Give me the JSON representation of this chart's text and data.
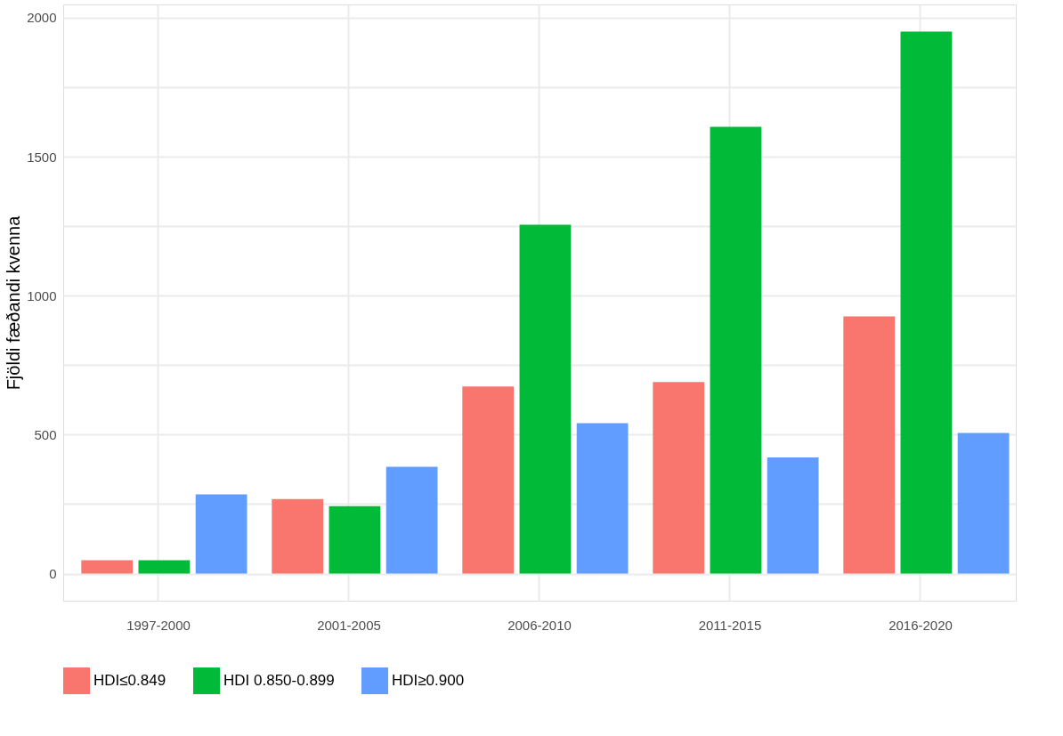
{
  "chart_data": {
    "type": "bar",
    "ylabel": "Fjöldi fæðandi kvenna",
    "categories": [
      "1997-2000",
      "2001-2005",
      "2006-2010",
      "2011-2015",
      "2016-2020"
    ],
    "series": [
      {
        "name": "HDI≤0.849",
        "color": "#f8766d",
        "values": [
          48,
          268,
          673,
          689,
          925
        ]
      },
      {
        "name": "HDI 0.850-0.899",
        "color": "#00ba38",
        "values": [
          48,
          243,
          1255,
          1607,
          1950
        ]
      },
      {
        "name": "HDI≥0.900",
        "color": "#619cff",
        "values": [
          285,
          384,
          541,
          418,
          506
        ]
      }
    ],
    "ylim": [
      -97.5,
      2047.5
    ],
    "yticks": [
      0,
      {
        "value": 250,
        "label": null
      },
      500,
      {
        "value": 750,
        "label": null
      },
      1000,
      {
        "value": 1250,
        "label": null
      },
      1500,
      {
        "value": 1750,
        "label": null
      },
      2000
    ],
    "grid": true,
    "legend": "bottom"
  }
}
